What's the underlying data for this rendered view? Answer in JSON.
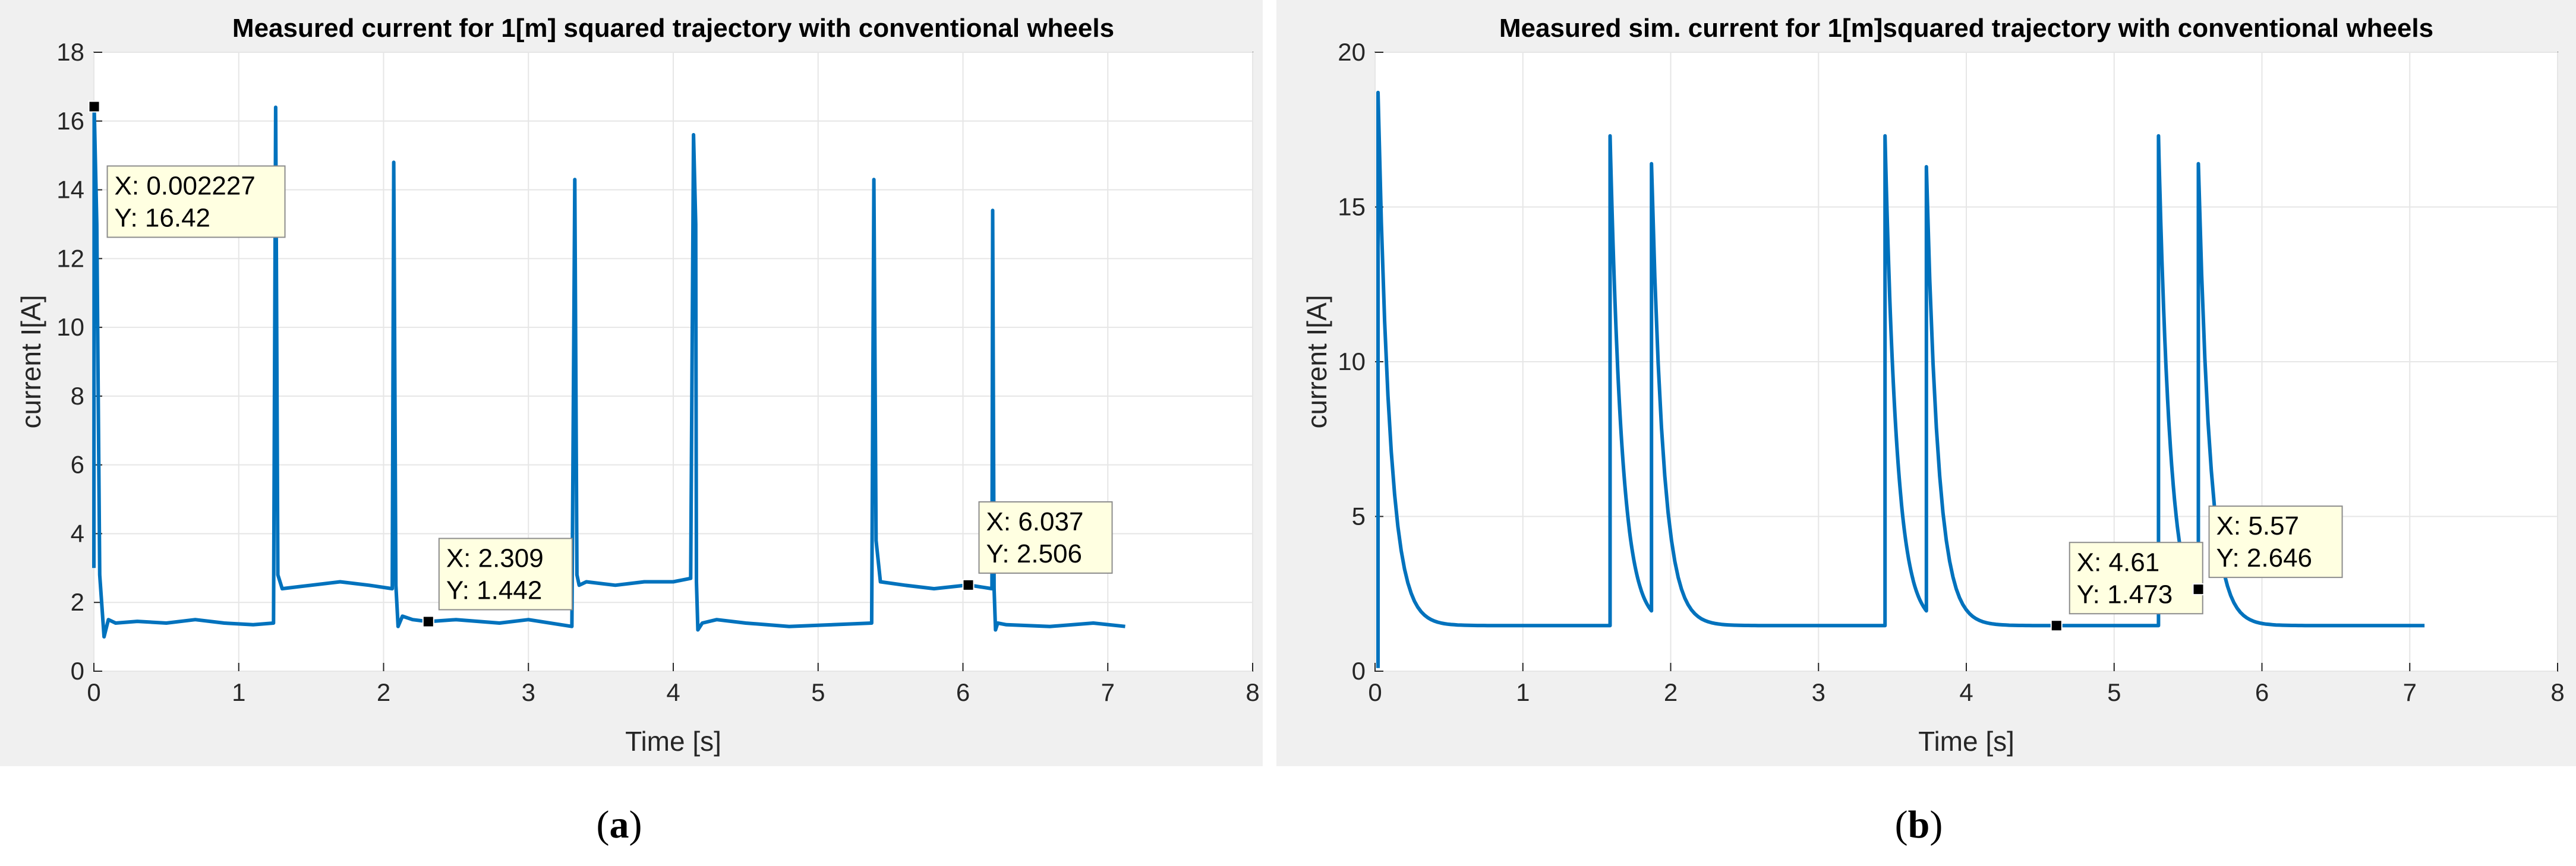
{
  "chart_data": [
    {
      "type": "line",
      "panel": "a",
      "caption_letter": "a",
      "title": "Measured current for 1[m] squared trajectory with conventional wheels",
      "xlabel": "Time [s]",
      "ylabel": "current I[A]",
      "xlim": [
        0,
        8
      ],
      "ylim": [
        0,
        18
      ],
      "xticks": [
        0,
        1,
        2,
        3,
        4,
        5,
        6,
        7,
        8
      ],
      "yticks": [
        0,
        2,
        4,
        6,
        8,
        10,
        12,
        14,
        16,
        18
      ],
      "grid": true,
      "line_color": "#0072BD",
      "series": [
        {
          "name": "measured current",
          "x": [
            0,
            0.002227,
            0.02,
            0.04,
            0.07,
            0.1,
            0.15,
            0.3,
            0.5,
            0.7,
            0.9,
            1.1,
            1.24,
            1.255,
            1.27,
            1.3,
            1.5,
            1.7,
            1.9,
            2.06,
            2.07,
            2.085,
            2.1,
            2.13,
            2.2,
            2.309,
            2.5,
            2.8,
            3.0,
            3.3,
            3.32,
            3.335,
            3.35,
            3.4,
            3.6,
            3.8,
            4.0,
            4.12,
            4.14,
            4.155,
            4.16,
            4.17,
            4.2,
            4.3,
            4.5,
            4.8,
            5.1,
            5.37,
            5.385,
            5.4,
            5.43,
            5.6,
            5.8,
            6.037,
            6.2,
            6.205,
            6.215,
            6.225,
            6.24,
            6.3,
            6.6,
            6.9,
            7.12
          ],
          "y": [
            3.0,
            16.42,
            13.0,
            2.8,
            1.0,
            1.5,
            1.4,
            1.45,
            1.4,
            1.5,
            1.4,
            1.35,
            1.4,
            16.4,
            2.8,
            2.4,
            2.5,
            2.6,
            2.5,
            2.4,
            14.8,
            2.5,
            1.3,
            1.6,
            1.5,
            1.442,
            1.5,
            1.4,
            1.5,
            1.3,
            14.3,
            2.8,
            2.5,
            2.6,
            2.5,
            2.6,
            2.6,
            2.7,
            15.6,
            13.0,
            2.6,
            1.2,
            1.4,
            1.5,
            1.4,
            1.3,
            1.35,
            1.4,
            14.3,
            3.8,
            2.6,
            2.5,
            2.4,
            2.506,
            2.4,
            13.4,
            2.4,
            1.2,
            1.4,
            1.35,
            1.3,
            1.4,
            1.3
          ]
        }
      ],
      "datatips": [
        {
          "x": 0.002227,
          "y": 16.42,
          "x_text": "X: 0.002227",
          "y_text": "Y: 16.42"
        },
        {
          "x": 2.309,
          "y": 1.442,
          "x_text": "X: 2.309",
          "y_text": "Y: 1.442"
        },
        {
          "x": 6.037,
          "y": 2.506,
          "x_text": "X: 6.037",
          "y_text": "Y: 2.506"
        }
      ]
    },
    {
      "type": "line",
      "panel": "b",
      "caption_letter": "b",
      "title": "Measured sim. current for 1[m]squared trajectory with conventional wheels",
      "xlabel": "Time [s]",
      "ylabel": "current I[A]",
      "xlim": [
        0,
        8
      ],
      "ylim": [
        0,
        20
      ],
      "xticks": [
        0,
        1,
        2,
        3,
        4,
        5,
        6,
        7,
        8
      ],
      "yticks": [
        0,
        5,
        10,
        15,
        20
      ],
      "grid": true,
      "line_color": "#0072BD",
      "baseline": 1.473,
      "decay_tau": 0.08,
      "series_end": 7.1,
      "spikes": [
        {
          "t": 0.02,
          "peak": 18.7,
          "start": 0.1
        },
        {
          "t": 1.59,
          "peak": 17.3,
          "start": 1.473
        },
        {
          "t": 1.87,
          "peak": 16.4
        },
        {
          "t": 3.45,
          "peak": 17.3,
          "start": 1.473
        },
        {
          "t": 3.73,
          "peak": 16.3
        },
        {
          "t": 5.3,
          "peak": 17.3,
          "start": 1.473
        },
        {
          "t": 5.57,
          "peak": 16.4
        }
      ],
      "datatips": [
        {
          "x": 4.61,
          "y": 1.473,
          "x_text": "X: 4.61",
          "y_text": "Y: 1.473"
        },
        {
          "x": 5.57,
          "y": 2.646,
          "x_text": "X: 5.57",
          "y_text": "Y: 2.646"
        }
      ]
    }
  ]
}
